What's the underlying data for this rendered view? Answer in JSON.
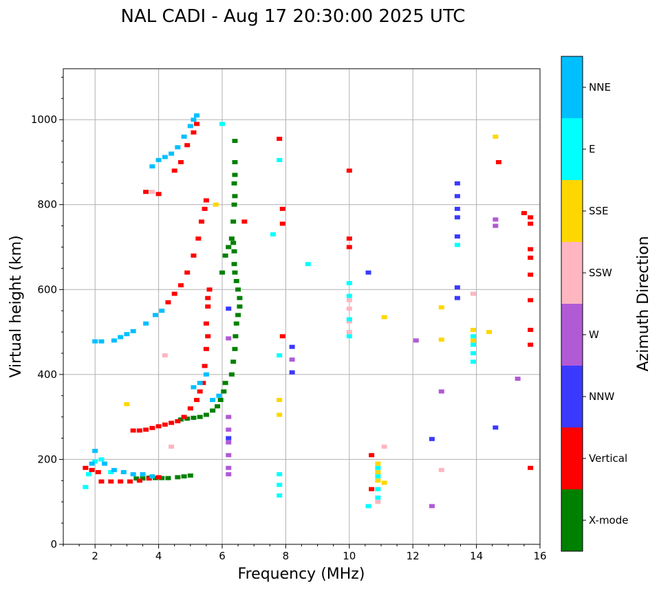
{
  "colors": {
    "X-mode": "#008000",
    "Vertical": "#ff0000",
    "NNW": "#3a3aff",
    "W": "#b15ad6",
    "SSW": "#ffb6c1",
    "SSE": "#ffd700",
    "E": "#00ffff",
    "NNE": "#00bfff",
    "grid": "#b0b0b0"
  },
  "chart_data": {
    "type": "scatter",
    "title": "NAL CADI - Aug 17 20:30:00 2025 UTC",
    "xlabel": "Frequency (MHz)",
    "ylabel": "Virtual height (km)",
    "xlim": [
      1,
      16
    ],
    "ylim": [
      0,
      1120
    ],
    "xticks": [
      2,
      4,
      6,
      8,
      10,
      12,
      14,
      16
    ],
    "yticks": [
      0,
      200,
      400,
      600,
      800,
      1000
    ],
    "grid": true,
    "colorbar": {
      "label": "Azimuth Direction",
      "categories": [
        "X-mode",
        "Vertical",
        "NNW",
        "W",
        "SSW",
        "SSE",
        "E",
        "NNE"
      ]
    },
    "series": [
      {
        "name": "X-mode",
        "points": [
          [
            3.3,
            155
          ],
          [
            3.5,
            155
          ],
          [
            3.7,
            157
          ],
          [
            3.9,
            156
          ],
          [
            4.1,
            156
          ],
          [
            4.3,
            156
          ],
          [
            4.6,
            158
          ],
          [
            4.8,
            160
          ],
          [
            5.0,
            162
          ],
          [
            4.7,
            294
          ],
          [
            4.9,
            296
          ],
          [
            5.1,
            298
          ],
          [
            5.3,
            300
          ],
          [
            5.5,
            305
          ],
          [
            5.7,
            315
          ],
          [
            5.85,
            325
          ],
          [
            5.95,
            340
          ],
          [
            6.05,
            360
          ],
          [
            6.1,
            380
          ],
          [
            6.3,
            400
          ],
          [
            6.35,
            430
          ],
          [
            6.4,
            460
          ],
          [
            6.42,
            490
          ],
          [
            6.45,
            520
          ],
          [
            6.5,
            540
          ],
          [
            6.55,
            560
          ],
          [
            6.55,
            580
          ],
          [
            6.5,
            600
          ],
          [
            6.45,
            620
          ],
          [
            6.4,
            640
          ],
          [
            6.38,
            660
          ],
          [
            6.38,
            690
          ],
          [
            6.35,
            710
          ],
          [
            6.0,
            640
          ],
          [
            6.1,
            680
          ],
          [
            6.2,
            700
          ],
          [
            6.3,
            720
          ],
          [
            6.35,
            760
          ],
          [
            6.38,
            800
          ],
          [
            6.4,
            820
          ],
          [
            6.38,
            850
          ],
          [
            6.4,
            870
          ],
          [
            6.4,
            900
          ],
          [
            6.4,
            950
          ]
        ]
      },
      {
        "name": "Vertical",
        "points": [
          [
            1.7,
            180
          ],
          [
            1.9,
            175
          ],
          [
            2.1,
            170
          ],
          [
            2.2,
            148
          ],
          [
            2.5,
            148
          ],
          [
            2.8,
            148
          ],
          [
            3.1,
            148
          ],
          [
            3.4,
            150
          ],
          [
            3.7,
            155
          ],
          [
            4.0,
            158
          ],
          [
            3.2,
            268
          ],
          [
            3.4,
            268
          ],
          [
            3.6,
            270
          ],
          [
            3.8,
            274
          ],
          [
            4.0,
            278
          ],
          [
            4.2,
            282
          ],
          [
            4.4,
            286
          ],
          [
            4.6,
            290
          ],
          [
            4.8,
            300
          ],
          [
            5.0,
            320
          ],
          [
            5.2,
            340
          ],
          [
            5.3,
            360
          ],
          [
            5.4,
            380
          ],
          [
            5.45,
            420
          ],
          [
            5.5,
            460
          ],
          [
            5.55,
            490
          ],
          [
            5.5,
            520
          ],
          [
            5.55,
            560
          ],
          [
            5.55,
            580
          ],
          [
            5.6,
            600
          ],
          [
            4.3,
            570
          ],
          [
            4.5,
            590
          ],
          [
            4.7,
            610
          ],
          [
            4.9,
            640
          ],
          [
            5.1,
            680
          ],
          [
            5.25,
            720
          ],
          [
            5.35,
            760
          ],
          [
            5.45,
            790
          ],
          [
            5.5,
            810
          ],
          [
            3.6,
            830
          ],
          [
            4.0,
            825
          ],
          [
            4.5,
            880
          ],
          [
            4.7,
            900
          ],
          [
            4.9,
            940
          ],
          [
            5.1,
            970
          ],
          [
            5.2,
            990
          ],
          [
            6.7,
            760
          ],
          [
            7.8,
            955
          ],
          [
            7.9,
            790
          ],
          [
            7.9,
            755
          ],
          [
            7.9,
            490
          ],
          [
            10.0,
            880
          ],
          [
            10.0,
            720
          ],
          [
            10.0,
            700
          ],
          [
            10.7,
            210
          ],
          [
            10.7,
            130
          ],
          [
            14.7,
            900
          ],
          [
            15.5,
            780
          ],
          [
            15.7,
            770
          ],
          [
            15.7,
            755
          ],
          [
            15.7,
            695
          ],
          [
            15.7,
            675
          ],
          [
            15.7,
            635
          ],
          [
            15.7,
            575
          ],
          [
            15.7,
            505
          ],
          [
            15.7,
            470
          ],
          [
            15.7,
            180
          ]
        ]
      },
      {
        "name": "NNW",
        "points": [
          [
            6.2,
            555
          ],
          [
            6.2,
            250
          ],
          [
            8.2,
            465
          ],
          [
            8.2,
            405
          ],
          [
            12.6,
            248
          ],
          [
            13.4,
            850
          ],
          [
            13.4,
            820
          ],
          [
            13.4,
            790
          ],
          [
            13.4,
            770
          ],
          [
            13.4,
            725
          ],
          [
            13.4,
            605
          ],
          [
            13.4,
            580
          ],
          [
            14.6,
            275
          ],
          [
            10.6,
            640
          ]
        ]
      },
      {
        "name": "W",
        "points": [
          [
            6.2,
            485
          ],
          [
            6.2,
            300
          ],
          [
            6.2,
            270
          ],
          [
            6.2,
            240
          ],
          [
            6.2,
            210
          ],
          [
            6.2,
            180
          ],
          [
            6.2,
            165
          ],
          [
            8.2,
            435
          ],
          [
            12.1,
            480
          ],
          [
            12.6,
            90
          ],
          [
            12.9,
            360
          ],
          [
            14.6,
            765
          ],
          [
            14.6,
            750
          ],
          [
            15.3,
            390
          ]
        ]
      },
      {
        "name": "SSW",
        "points": [
          [
            3.8,
            830
          ],
          [
            4.2,
            445
          ],
          [
            4.4,
            230
          ],
          [
            10.0,
            575
          ],
          [
            10.0,
            555
          ],
          [
            10.0,
            525
          ],
          [
            10.0,
            500
          ],
          [
            11.1,
            230
          ],
          [
            12.9,
            175
          ],
          [
            13.9,
            590
          ],
          [
            10.9,
            100
          ]
        ]
      },
      {
        "name": "SSE",
        "points": [
          [
            3.0,
            330
          ],
          [
            5.8,
            800
          ],
          [
            7.8,
            340
          ],
          [
            7.8,
            305
          ],
          [
            10.9,
            190
          ],
          [
            10.9,
            170
          ],
          [
            10.9,
            150
          ],
          [
            11.1,
            535
          ],
          [
            11.1,
            145
          ],
          [
            12.9,
            558
          ],
          [
            12.9,
            482
          ],
          [
            13.9,
            505
          ],
          [
            13.9,
            480
          ],
          [
            14.4,
            500
          ],
          [
            14.6,
            960
          ]
        ]
      },
      {
        "name": "E",
        "points": [
          [
            1.7,
            135
          ],
          [
            1.8,
            165
          ],
          [
            2.0,
            195
          ],
          [
            2.2,
            200
          ],
          [
            2.5,
            170
          ],
          [
            6.0,
            990
          ],
          [
            7.6,
            730
          ],
          [
            7.8,
            905
          ],
          [
            7.8,
            445
          ],
          [
            7.8,
            165
          ],
          [
            7.8,
            140
          ],
          [
            7.8,
            115
          ],
          [
            8.7,
            660
          ],
          [
            10.0,
            615
          ],
          [
            10.0,
            585
          ],
          [
            10.0,
            530
          ],
          [
            10.0,
            490
          ],
          [
            10.6,
            90
          ],
          [
            10.9,
            180
          ],
          [
            10.9,
            160
          ],
          [
            10.9,
            130
          ],
          [
            10.9,
            110
          ],
          [
            13.4,
            705
          ],
          [
            13.9,
            490
          ],
          [
            13.9,
            470
          ],
          [
            13.9,
            450
          ],
          [
            13.9,
            430
          ]
        ]
      },
      {
        "name": "NNE",
        "points": [
          [
            1.9,
            190
          ],
          [
            2.0,
            220
          ],
          [
            2.3,
            190
          ],
          [
            2.6,
            175
          ],
          [
            2.9,
            170
          ],
          [
            3.2,
            165
          ],
          [
            3.5,
            165
          ],
          [
            3.8,
            160
          ],
          [
            2.0,
            478
          ],
          [
            2.2,
            478
          ],
          [
            2.6,
            480
          ],
          [
            2.8,
            488
          ],
          [
            3.0,
            495
          ],
          [
            3.2,
            502
          ],
          [
            3.6,
            520
          ],
          [
            3.9,
            540
          ],
          [
            4.1,
            550
          ],
          [
            3.8,
            890
          ],
          [
            4.0,
            905
          ],
          [
            4.2,
            912
          ],
          [
            4.4,
            920
          ],
          [
            4.6,
            935
          ],
          [
            4.8,
            960
          ],
          [
            5.0,
            985
          ],
          [
            5.1,
            1000
          ],
          [
            5.2,
            1010
          ],
          [
            5.1,
            370
          ],
          [
            5.3,
            380
          ],
          [
            5.5,
            400
          ],
          [
            5.7,
            340
          ],
          [
            5.9,
            350
          ]
        ]
      }
    ]
  }
}
